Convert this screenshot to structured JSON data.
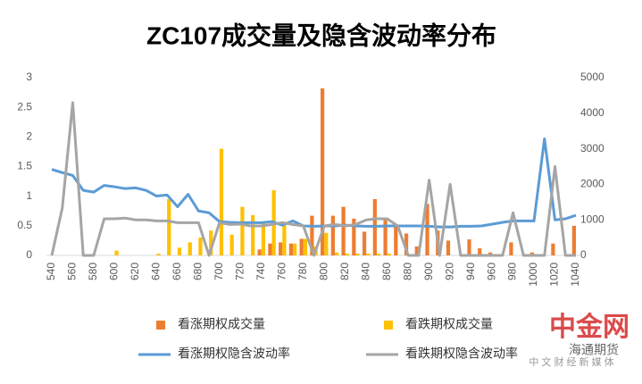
{
  "chart_data": {
    "type": "bar",
    "title": "ZC107成交量及隐含波动率分布",
    "categories": [
      "540",
      null,
      "560",
      null,
      "580",
      null,
      "600",
      null,
      "620",
      null,
      "640",
      null,
      "660",
      null,
      "680",
      null,
      "700",
      null,
      "720",
      null,
      "740",
      null,
      "760",
      null,
      "780",
      null,
      "800",
      null,
      "820",
      null,
      "840",
      null,
      "860",
      null,
      "880",
      null,
      "900",
      null,
      "920",
      null,
      "940",
      null,
      "960",
      null,
      "980",
      null,
      "1000",
      null,
      "1020",
      null,
      "1040"
    ],
    "ylim": [
      0,
      3
    ],
    "yticks": [
      0,
      0.5,
      1,
      1.5,
      2,
      2.5,
      3
    ],
    "y2lim": [
      0,
      5000
    ],
    "y2ticks": [
      0,
      1000,
      2000,
      3000,
      4000,
      5000
    ],
    "series": [
      {
        "name": "看涨期权成交量",
        "color": "#ed7d31",
        "kind": "bar",
        "values": [
          0,
          0,
          0,
          0,
          0,
          0,
          0,
          0,
          0,
          0,
          0,
          0,
          0,
          0,
          0,
          0,
          0,
          0,
          0,
          0,
          0.1,
          0.2,
          0.22,
          0.2,
          0.28,
          0.67,
          2.82,
          0.67,
          0.82,
          0.62,
          0.4,
          0.95,
          0.6,
          0.5,
          0.37,
          0.15,
          0.87,
          0.42,
          0.25,
          0,
          0.27,
          0.12,
          0.05,
          0,
          0.22,
          0,
          0.05,
          0,
          0.2,
          0,
          0.5
        ]
      },
      {
        "name": "看跌期权成交量",
        "color": "#ffc000",
        "kind": "bar",
        "values": [
          0,
          0,
          0,
          0,
          0,
          0,
          0.08,
          0,
          0,
          0,
          0.03,
          0.95,
          0.13,
          0.22,
          0.3,
          0.42,
          1.8,
          0.35,
          0.82,
          0.68,
          0.55,
          1.1,
          0.55,
          0.2,
          0.28,
          0.15,
          0.38,
          0.05,
          0.03,
          0.03,
          0.03,
          0.03,
          0.03,
          0,
          0,
          0,
          0,
          0,
          0,
          0,
          0,
          0,
          0,
          0,
          0,
          0,
          0,
          0,
          0,
          0,
          0
        ]
      },
      {
        "name": "看涨期权隐含波动率",
        "color": "#5b9bd5",
        "kind": "line",
        "axis": "y2",
        "values": [
          2420,
          2330,
          2250,
          1830,
          1780,
          1970,
          1930,
          1880,
          1900,
          1830,
          1670,
          1700,
          1370,
          1720,
          1250,
          1200,
          950,
          930,
          920,
          920,
          920,
          950,
          850,
          970,
          830,
          820,
          830,
          830,
          850,
          830,
          820,
          820,
          830,
          830,
          830,
          830,
          820,
          800,
          800,
          820,
          820,
          830,
          880,
          930,
          970,
          970,
          970,
          3280,
          1000,
          1030,
          1130
        ]
      },
      {
        "name": "看跌期权隐含波动率",
        "color": "#a5a5a5",
        "kind": "line",
        "axis": "y2",
        "values": [
          0,
          1330,
          4300,
          0,
          0,
          1030,
          1030,
          1050,
          1000,
          1000,
          970,
          970,
          920,
          920,
          920,
          0,
          920,
          870,
          880,
          830,
          830,
          870,
          920,
          870,
          830,
          0,
          830,
          870,
          830,
          870,
          1000,
          1030,
          1030,
          830,
          0,
          0,
          2120,
          0,
          2000,
          0,
          0,
          0,
          0,
          0,
          1200,
          0,
          0,
          0,
          2500,
          0,
          0
        ]
      }
    ],
    "watermark": [
      "中金网",
      "中 文 财 经 新 媒 体",
      "海通期货"
    ]
  }
}
